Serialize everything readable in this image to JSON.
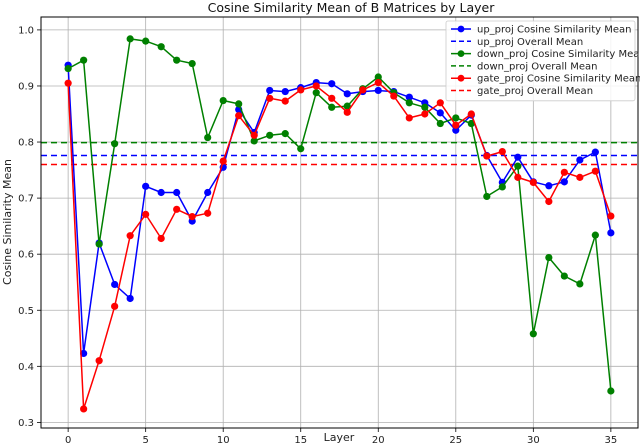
{
  "chart_data": {
    "type": "line",
    "title": "Cosine Similarity Mean of B Matrices by Layer",
    "xlabel": "Layer",
    "ylabel": "Cosine Similarity Mean",
    "xlim": [
      -1.75,
      36.75
    ],
    "ylim": [
      0.29,
      1.023
    ],
    "xticks": [
      0,
      5,
      10,
      15,
      20,
      25,
      30,
      35
    ],
    "yticks": [
      0.3,
      0.4,
      0.5,
      0.6,
      0.7,
      0.8,
      0.9,
      1.0
    ],
    "grid": true,
    "legend_position": "top-right",
    "x": [
      0,
      1,
      2,
      3,
      4,
      5,
      6,
      7,
      8,
      9,
      10,
      11,
      12,
      13,
      14,
      15,
      16,
      17,
      18,
      19,
      20,
      21,
      22,
      23,
      24,
      25,
      26,
      27,
      28,
      29,
      30,
      31,
      32,
      33,
      34,
      35
    ],
    "series": [
      {
        "name": "up_proj Cosine Similarity Mean",
        "color": "#0000ff",
        "values": [
          0.937,
          0.423,
          0.62,
          0.546,
          0.521,
          0.721,
          0.71,
          0.71,
          0.659,
          0.71,
          0.755,
          0.858,
          0.817,
          0.892,
          0.89,
          0.897,
          0.906,
          0.904,
          0.886,
          0.89,
          0.892,
          0.89,
          0.88,
          0.87,
          0.852,
          0.821,
          0.848,
          0.776,
          0.728,
          0.773,
          0.729,
          0.722,
          0.729,
          0.768,
          0.782,
          0.638
        ]
      },
      {
        "name": "up_proj Overall Mean",
        "color": "#0000ff",
        "dashed": true,
        "mean": 0.776
      },
      {
        "name": "down_proj Cosine Similarity Mean",
        "color": "#008000",
        "values": [
          0.931,
          0.946,
          0.618,
          0.797,
          0.984,
          0.98,
          0.97,
          0.946,
          0.94,
          0.808,
          0.874,
          0.868,
          0.802,
          0.812,
          0.815,
          0.788,
          0.888,
          0.862,
          0.864,
          0.895,
          0.916,
          0.888,
          0.87,
          0.862,
          0.833,
          0.843,
          0.833,
          0.703,
          0.72,
          0.757,
          0.458,
          0.594,
          0.561,
          0.547,
          0.634,
          0.356
        ]
      },
      {
        "name": "down_proj Overall Mean",
        "color": "#008000",
        "dashed": true,
        "mean": 0.799
      },
      {
        "name": "gate_proj Cosine Similarity Mean",
        "color": "#ff0000",
        "values": [
          0.905,
          0.324,
          0.41,
          0.507,
          0.633,
          0.671,
          0.628,
          0.68,
          0.667,
          0.673,
          0.766,
          0.847,
          0.812,
          0.878,
          0.873,
          0.893,
          0.9,
          0.878,
          0.853,
          0.893,
          0.906,
          0.882,
          0.843,
          0.85,
          0.87,
          0.83,
          0.85,
          0.775,
          0.783,
          0.737,
          0.728,
          0.694,
          0.746,
          0.737,
          0.748,
          0.668
        ]
      },
      {
        "name": "gate_proj Overall Mean",
        "color": "#ff0000",
        "dashed": true,
        "mean": 0.76
      }
    ]
  }
}
